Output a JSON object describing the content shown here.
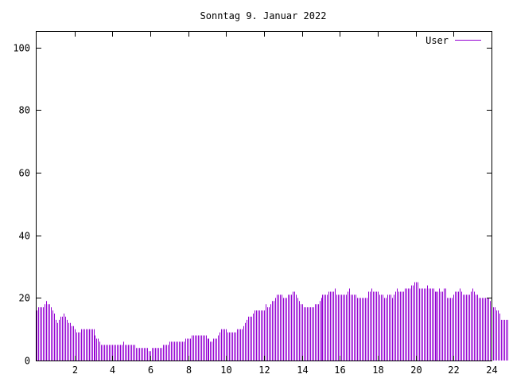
{
  "chart_data": {
    "type": "bar",
    "title": "Sonntag 9. Januar 2022",
    "xlabel": "",
    "ylabel": "",
    "xlim": [
      0,
      24
    ],
    "ylim": [
      0,
      105
    ],
    "x_ticks": [
      2,
      4,
      6,
      8,
      10,
      12,
      14,
      16,
      18,
      20,
      22,
      24
    ],
    "y_ticks": [
      0,
      20,
      40,
      60,
      80,
      100
    ],
    "grid": false,
    "legend_position": "top-right",
    "series": [
      {
        "name": "User",
        "color": "#9400d3",
        "interval_minutes": 5,
        "values": [
          16,
          17,
          17,
          17,
          17,
          18,
          19,
          18,
          18,
          17,
          16,
          15,
          13,
          12,
          13,
          14,
          14,
          15,
          14,
          13,
          12,
          12,
          11,
          11,
          10,
          9,
          9,
          9,
          10,
          10,
          10,
          10,
          10,
          10,
          10,
          10,
          10,
          8,
          7,
          7,
          6,
          5,
          5,
          5,
          5,
          5,
          5,
          5,
          5,
          5,
          5,
          5,
          5,
          5,
          5,
          6,
          5,
          5,
          5,
          5,
          5,
          5,
          5,
          4,
          4,
          4,
          4,
          4,
          4,
          4,
          4,
          3,
          3,
          4,
          4,
          4,
          4,
          4,
          4,
          4,
          5,
          5,
          5,
          5,
          6,
          6,
          6,
          6,
          6,
          6,
          6,
          6,
          6,
          6,
          7,
          7,
          7,
          7,
          8,
          8,
          8,
          8,
          8,
          8,
          8,
          8,
          8,
          8,
          7,
          7,
          6,
          6,
          7,
          7,
          7,
          8,
          9,
          10,
          10,
          10,
          10,
          9,
          9,
          9,
          9,
          9,
          9,
          10,
          10,
          10,
          10,
          11,
          12,
          13,
          14,
          14,
          14,
          15,
          16,
          16,
          16,
          16,
          16,
          16,
          16,
          18,
          17,
          17,
          18,
          19,
          19,
          20,
          21,
          21,
          21,
          21,
          20,
          20,
          20,
          21,
          21,
          21,
          22,
          22,
          21,
          20,
          19,
          18,
          18,
          17,
          17,
          17,
          17,
          17,
          17,
          17,
          18,
          18,
          18,
          19,
          20,
          21,
          21,
          21,
          21,
          22,
          22,
          22,
          22,
          23,
          21,
          21,
          21,
          21,
          21,
          21,
          21,
          22,
          23,
          21,
          21,
          21,
          21,
          20,
          20,
          20,
          20,
          20,
          20,
          20,
          22,
          22,
          23,
          22,
          22,
          22,
          22,
          21,
          21,
          21,
          20,
          20,
          21,
          21,
          21,
          20,
          21,
          22,
          23,
          22,
          22,
          22,
          22,
          23,
          23,
          23,
          23,
          24,
          24,
          25,
          25,
          25,
          23,
          23,
          23,
          23,
          23,
          24,
          23,
          23,
          23,
          23,
          22,
          22,
          22,
          23,
          22,
          22,
          23,
          23,
          20,
          20,
          20,
          20,
          21,
          22,
          22,
          22,
          23,
          22,
          21,
          21,
          21,
          21,
          21,
          22,
          23,
          22,
          21,
          21,
          20,
          20,
          20,
          20,
          20,
          20,
          20,
          19,
          18,
          17,
          17,
          16,
          16,
          15,
          13,
          13,
          13,
          13,
          13,
          12,
          12,
          11,
          10,
          10,
          10,
          10,
          10,
          11
        ]
      }
    ]
  }
}
